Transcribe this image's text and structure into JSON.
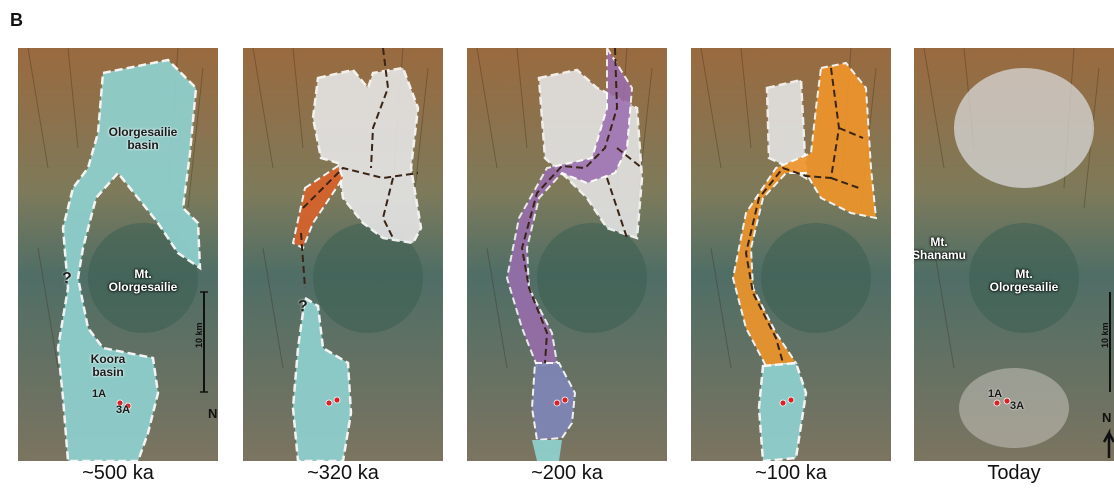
{
  "figure_label": "B",
  "panels": [
    {
      "caption": "~500 ka",
      "labels": {
        "basin_north": "Olorgesailie\nbasin",
        "mountain": "Mt.\nOlorgesailie",
        "basin_south": "Koora\nbasin",
        "site_1": "1A",
        "site_2": "3A",
        "question": "?",
        "scale": "10 km",
        "north": "N"
      }
    },
    {
      "caption": "~320 ka",
      "labels": {
        "question": "?"
      }
    },
    {
      "caption": "~200 ka",
      "labels": {}
    },
    {
      "caption": "~100 ka",
      "labels": {}
    },
    {
      "caption": "Today",
      "labels": {
        "mountain_west": "Mt.\nShanamu",
        "mountain": "Mt.\nOlorgesailie",
        "site_1": "1A",
        "site_2": "3A",
        "scale": "10 km",
        "north": "N"
      }
    }
  ],
  "colors": {
    "lake_teal": "#8fd1cf",
    "lake_white": "#e6e6e6",
    "channel_red": "#d9622b",
    "channel_purple": "#9b6db0",
    "channel_orange": "#f0952a",
    "south_blue": "#7f86b8",
    "site_marker": "#d8222a",
    "river_dash": "#3a2416"
  }
}
